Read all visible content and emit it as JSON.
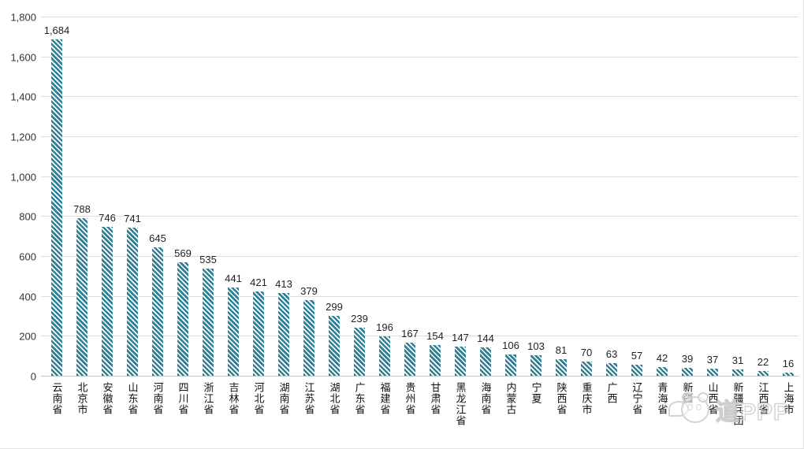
{
  "chart_data": {
    "type": "bar",
    "title": "",
    "xlabel": "",
    "ylabel": "",
    "categories": [
      "云南省",
      "北京市",
      "安徽省",
      "山东省",
      "河南省",
      "四川省",
      "浙江省",
      "吉林省",
      "河北省",
      "湖南省",
      "江苏省",
      "湖北省",
      "广东省",
      "福建省",
      "贵州省",
      "甘肃省",
      "黑龙江省",
      "海南省",
      "内蒙古",
      "宁夏",
      "陕西省",
      "重庆市",
      "广西",
      "辽宁省",
      "青海省",
      "新疆",
      "山西省",
      "新疆兵团",
      "江西省",
      "上海市"
    ],
    "values": [
      1684,
      788,
      746,
      741,
      645,
      569,
      535,
      441,
      421,
      413,
      379,
      299,
      239,
      196,
      167,
      154,
      147,
      144,
      106,
      103,
      81,
      70,
      63,
      57,
      42,
      39,
      37,
      31,
      22,
      16
    ],
    "value_labels": [
      "1,684",
      "788",
      "746",
      "741",
      "645",
      "569",
      "535",
      "441",
      "421",
      "413",
      "379",
      "299",
      "239",
      "196",
      "167",
      "154",
      "147",
      "144",
      "106",
      "103",
      "81",
      "70",
      "63",
      "57",
      "42",
      "39",
      "37",
      "31",
      "22",
      "16"
    ],
    "ylim": [
      0,
      1800
    ],
    "ytick_values": [
      0,
      200,
      400,
      600,
      800,
      1000,
      1200,
      1400,
      1600,
      1800
    ],
    "ytick_labels": [
      "0",
      "200",
      "400",
      "600",
      "800",
      "1,000",
      "1,200",
      "1,400",
      "1,600",
      "1,800"
    ],
    "grid": true,
    "legend_position": "none",
    "bar_style": "diagonal-hatch",
    "colors": {
      "bar": "#2E8095",
      "gridline": "#DCDCDC",
      "axis_line": "#C3C3C3",
      "text": "#222222",
      "background": "#FFFFFF",
      "watermark": "#C9C9C9"
    }
  },
  "watermark": {
    "text": "道PPP",
    "icon": "panda-speech-bubble-icon"
  }
}
